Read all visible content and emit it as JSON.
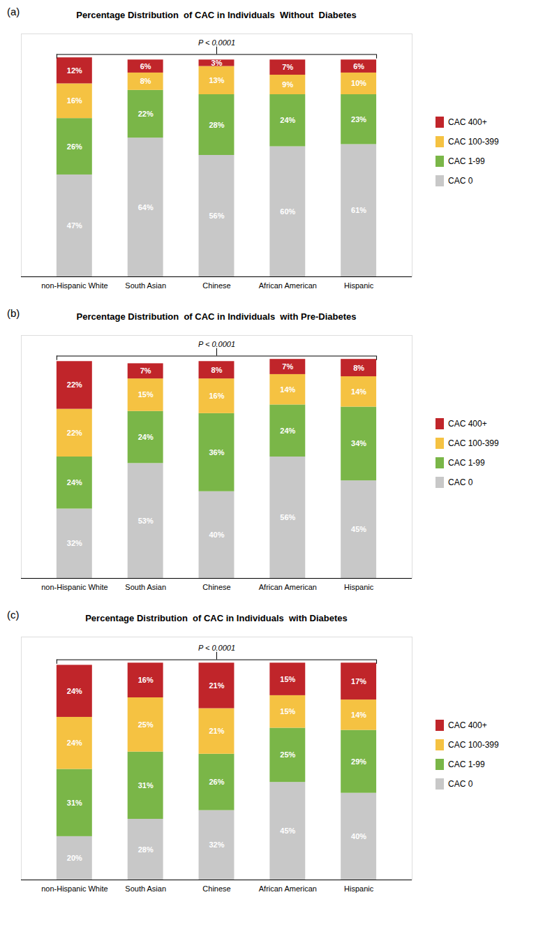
{
  "chart_data": [
    {
      "type": "bar",
      "title": "Percentage Distribution  of CAC in Individuals  Without  Diabetes",
      "categories": [
        "non-Hispanic White",
        "South Asian",
        "Chinese",
        "African American",
        "Hispanic"
      ],
      "series": [
        {
          "name": "CAC 0",
          "color": "#c8c8c8",
          "values": [
            47,
            64,
            56,
            60,
            61
          ],
          "value_labels": [
            "47%",
            "64%",
            "56%",
            "60%",
            "61%"
          ]
        },
        {
          "name": "CAC 1-99",
          "color": "#7ab648",
          "values": [
            26,
            22,
            28,
            24,
            23
          ],
          "value_labels": [
            "26%",
            "22%",
            "28%",
            "24%",
            "23%"
          ]
        },
        {
          "name": "CAC 100-399",
          "color": "#f5c242",
          "values": [
            16,
            8,
            13,
            9,
            10
          ],
          "value_labels": [
            "16%",
            "8%",
            "13%",
            "9%",
            "10%"
          ]
        },
        {
          "name": "CAC 400+",
          "color": "#c0252a",
          "values": [
            12,
            6,
            3,
            7,
            6
          ],
          "value_labels": [
            "12%",
            "6%",
            "3%",
            "7%",
            "6%"
          ]
        }
      ],
      "annotations": [
        "(a)",
        "P < 0.0001"
      ],
      "stacked": true,
      "data_labels": true,
      "ylim": [
        0,
        112
      ],
      "tick_labels": "x",
      "legend": "right",
      "grid": false
    },
    {
      "type": "bar",
      "title": "Percentage Distribution  of CAC in Individuals  with Pre-Diabetes",
      "categories": [
        "non-Hispanic White",
        "South Asian",
        "Chinese",
        "African American",
        "Hispanic"
      ],
      "series": [
        {
          "name": "CAC 0",
          "color": "#c8c8c8",
          "values": [
            32,
            53,
            40,
            56,
            45
          ],
          "value_labels": [
            "32%",
            "53%",
            "40%",
            "56%",
            "45%"
          ]
        },
        {
          "name": "CAC 1-99",
          "color": "#7ab648",
          "values": [
            24,
            24,
            36,
            24,
            34
          ],
          "value_labels": [
            "24%",
            "24%",
            "36%",
            "24%",
            "34%"
          ]
        },
        {
          "name": "CAC 100-399",
          "color": "#f5c242",
          "values": [
            22,
            15,
            16,
            14,
            14
          ],
          "value_labels": [
            "22%",
            "15%",
            "16%",
            "14%",
            "14%"
          ]
        },
        {
          "name": "CAC 400+",
          "color": "#c0252a",
          "values": [
            22,
            7,
            8,
            7,
            8
          ],
          "value_labels": [
            "22%",
            "7%",
            "8%",
            "7%",
            "8%"
          ]
        }
      ],
      "annotations": [
        "(b)",
        "P < 0.0001"
      ],
      "stacked": true,
      "data_labels": true,
      "ylim": [
        0,
        112
      ],
      "tick_labels": "x",
      "legend": "right",
      "grid": false
    },
    {
      "type": "bar",
      "title": "Percentage Distribution  of CAC in Individuals  with Diabetes",
      "categories": [
        "non-Hispanic White",
        "South Asian",
        "Chinese",
        "African American",
        "Hispanic"
      ],
      "series": [
        {
          "name": "CAC 0",
          "color": "#c8c8c8",
          "values": [
            20,
            28,
            32,
            45,
            40
          ],
          "value_labels": [
            "20%",
            "28%",
            "32%",
            "45%",
            "40%"
          ]
        },
        {
          "name": "CAC 1-99",
          "color": "#7ab648",
          "values": [
            31,
            31,
            26,
            25,
            29
          ],
          "value_labels": [
            "31%",
            "31%",
            "26%",
            "25%",
            "29%"
          ]
        },
        {
          "name": "CAC 100-399",
          "color": "#f5c242",
          "values": [
            24,
            25,
            21,
            15,
            14
          ],
          "value_labels": [
            "24%",
            "25%",
            "21%",
            "15%",
            "14%"
          ]
        },
        {
          "name": "CAC 400+",
          "color": "#c0252a",
          "values": [
            24,
            16,
            21,
            15,
            17
          ],
          "value_labels": [
            "24%",
            "16%",
            "21%",
            "15%",
            "17%"
          ]
        }
      ],
      "annotations": [
        "(c)",
        "P < 0.0001"
      ],
      "stacked": true,
      "data_labels": true,
      "ylim": [
        0,
        112
      ],
      "tick_labels": "x",
      "legend": "right",
      "grid": false
    }
  ]
}
